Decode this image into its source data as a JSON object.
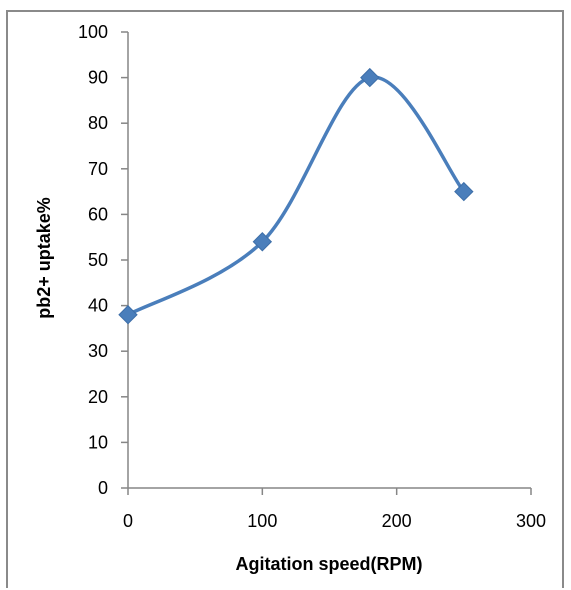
{
  "chart_data": {
    "type": "line",
    "smooth": true,
    "title": "",
    "xlabel": "Agitation speed(RPM)",
    "ylabel": "pb2+ uptake%",
    "xlim": [
      0,
      300
    ],
    "ylim": [
      0,
      100
    ],
    "xticks": [
      0,
      100,
      200,
      300
    ],
    "yticks": [
      0,
      10,
      20,
      30,
      40,
      50,
      60,
      70,
      80,
      90,
      100
    ],
    "grid": false,
    "legend": "none",
    "marker": "diamond",
    "series_color": "#4a7ebb",
    "series": [
      {
        "x": [
          0,
          100,
          180,
          250
        ],
        "values": [
          38,
          54,
          90,
          65
        ]
      }
    ]
  }
}
